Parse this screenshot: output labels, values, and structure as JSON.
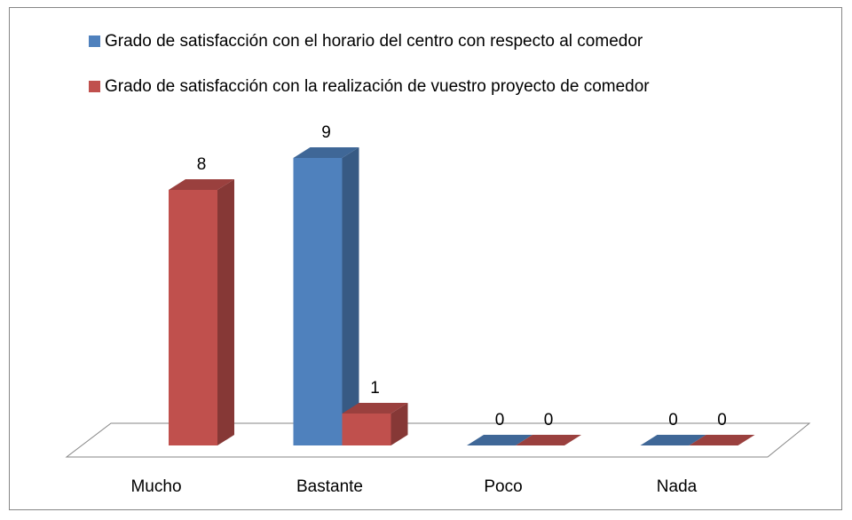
{
  "chart_data": {
    "type": "bar3d",
    "categories": [
      "Mucho",
      "Bastante",
      "Poco",
      "Nada"
    ],
    "series": [
      {
        "name": "Grado de satisfacción con el horario del centro con respecto al comedor",
        "color": "#4f81bd",
        "values": [
          null,
          9,
          0,
          0
        ]
      },
      {
        "name": "Grado de satisfacción con la realización de vuestro proyecto de comedor",
        "color": "#c0504d",
        "values": [
          8,
          1,
          0,
          0
        ]
      }
    ],
    "legend": "top"
  }
}
